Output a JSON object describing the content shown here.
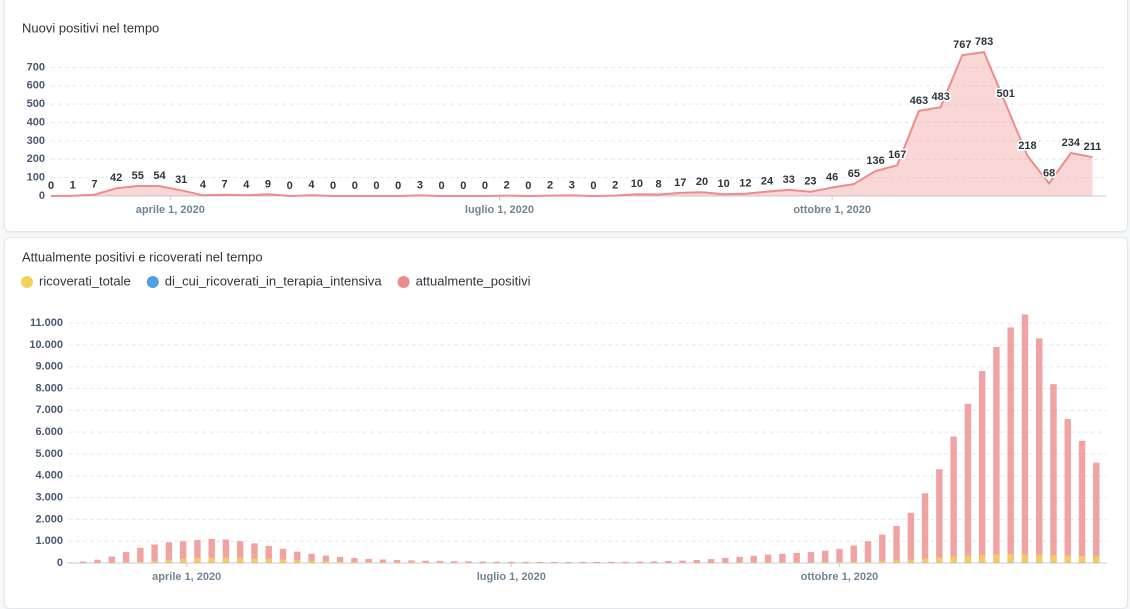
{
  "chart_data": [
    {
      "type": "area",
      "title": "Nuovi positivi nel tempo",
      "color": "#ed8c8c",
      "show_values": true,
      "grid": true,
      "x": [
        "2020-02-28",
        "2020-03-05",
        "2020-03-11",
        "2020-03-17",
        "2020-03-23",
        "2020-03-29",
        "2020-04-04",
        "2020-04-10",
        "2020-04-16",
        "2020-04-22",
        "2020-04-28",
        "2020-05-04",
        "2020-05-10",
        "2020-05-16",
        "2020-05-22",
        "2020-05-28",
        "2020-06-03",
        "2020-06-09",
        "2020-06-15",
        "2020-06-21",
        "2020-06-27",
        "2020-07-03",
        "2020-07-09",
        "2020-07-15",
        "2020-07-21",
        "2020-07-27",
        "2020-08-02",
        "2020-08-08",
        "2020-08-14",
        "2020-08-20",
        "2020-08-26",
        "2020-09-01",
        "2020-09-07",
        "2020-09-13",
        "2020-09-19",
        "2020-09-25",
        "2020-10-01",
        "2020-10-07",
        "2020-10-13",
        "2020-10-19",
        "2020-10-25",
        "2020-10-31",
        "2020-11-06",
        "2020-11-12",
        "2020-11-18",
        "2020-11-24",
        "2020-11-30",
        "2020-12-06",
        "2020-12-12"
      ],
      "values": [
        0,
        1,
        7,
        42,
        55,
        54,
        31,
        4,
        7,
        4,
        9,
        0,
        4,
        0,
        0,
        0,
        0,
        3,
        0,
        0,
        0,
        2,
        0,
        2,
        3,
        0,
        2,
        10,
        8,
        17,
        20,
        10,
        12,
        24,
        33,
        23,
        46,
        65,
        136,
        167,
        463,
        483,
        767,
        783,
        501,
        218,
        68,
        234,
        211
      ],
      "xlim": [
        "2020-02-28",
        "2020-12-16"
      ],
      "xticks": [
        {
          "value": "2020-04-01",
          "label": "aprile 1, 2020"
        },
        {
          "value": "2020-07-01",
          "label": "luglio 1, 2020"
        },
        {
          "value": "2020-10-01",
          "label": "ottobre 1, 2020"
        }
      ],
      "ylim": [
        0,
        800
      ],
      "yticks": [
        0,
        100,
        200,
        300,
        400,
        500,
        600,
        700
      ]
    },
    {
      "type": "bar",
      "title": "Attualmente positivi e ricoverati nel tempo",
      "grid": true,
      "legend": "top-left",
      "x": [
        "2020-02-28",
        "2020-03-03",
        "2020-03-07",
        "2020-03-11",
        "2020-03-15",
        "2020-03-19",
        "2020-03-23",
        "2020-03-27",
        "2020-03-31",
        "2020-04-04",
        "2020-04-08",
        "2020-04-12",
        "2020-04-16",
        "2020-04-20",
        "2020-04-24",
        "2020-04-28",
        "2020-05-02",
        "2020-05-06",
        "2020-05-10",
        "2020-05-14",
        "2020-05-18",
        "2020-05-22",
        "2020-05-26",
        "2020-05-30",
        "2020-06-03",
        "2020-06-07",
        "2020-06-11",
        "2020-06-15",
        "2020-06-19",
        "2020-06-23",
        "2020-06-27",
        "2020-07-01",
        "2020-07-05",
        "2020-07-09",
        "2020-07-13",
        "2020-07-17",
        "2020-07-21",
        "2020-07-25",
        "2020-07-29",
        "2020-08-02",
        "2020-08-06",
        "2020-08-10",
        "2020-08-14",
        "2020-08-18",
        "2020-08-22",
        "2020-08-26",
        "2020-08-30",
        "2020-09-03",
        "2020-09-07",
        "2020-09-11",
        "2020-09-15",
        "2020-09-19",
        "2020-09-23",
        "2020-09-27",
        "2020-10-01",
        "2020-10-05",
        "2020-10-09",
        "2020-10-13",
        "2020-10-17",
        "2020-10-21",
        "2020-10-25",
        "2020-10-29",
        "2020-11-02",
        "2020-11-06",
        "2020-11-10",
        "2020-11-14",
        "2020-11-18",
        "2020-11-22",
        "2020-11-26",
        "2020-11-30",
        "2020-12-04",
        "2020-12-08",
        "2020-12-12"
      ],
      "series": [
        {
          "name": "ricoverati_totale",
          "color": "#f1d35c",
          "values": [
            0,
            2,
            5,
            15,
            30,
            60,
            100,
            150,
            200,
            230,
            250,
            250,
            240,
            220,
            200,
            170,
            140,
            110,
            90,
            70,
            55,
            45,
            35,
            30,
            25,
            20,
            18,
            15,
            12,
            10,
            8,
            7,
            6,
            5,
            5,
            5,
            5,
            5,
            5,
            5,
            5,
            6,
            7,
            8,
            10,
            12,
            15,
            18,
            20,
            22,
            25,
            28,
            32,
            38,
            45,
            55,
            70,
            90,
            120,
            160,
            200,
            250,
            300,
            340,
            370,
            390,
            400,
            395,
            380,
            360,
            340,
            320,
            300
          ]
        },
        {
          "name": "di_cui_ricoverati_in_terapia_intensiva",
          "color": "#509ee3",
          "values": [
            0,
            0,
            1,
            3,
            6,
            12,
            20,
            30,
            38,
            42,
            42,
            40,
            36,
            32,
            28,
            24,
            20,
            16,
            12,
            10,
            8,
            6,
            5,
            4,
            3,
            3,
            2,
            2,
            2,
            2,
            1,
            1,
            1,
            1,
            1,
            1,
            1,
            1,
            1,
            1,
            1,
            1,
            1,
            1,
            2,
            2,
            2,
            3,
            3,
            3,
            4,
            4,
            5,
            6,
            7,
            8,
            10,
            12,
            15,
            20,
            26,
            33,
            40,
            46,
            50,
            53,
            55,
            55,
            54,
            52,
            50,
            48,
            46
          ]
        },
        {
          "name": "attualmente_positivi",
          "color": "#ed8c8c",
          "values": [
            20,
            60,
            150,
            300,
            500,
            700,
            850,
            950,
            1000,
            1050,
            1100,
            1080,
            1000,
            900,
            780,
            650,
            520,
            420,
            340,
            280,
            230,
            190,
            160,
            140,
            120,
            105,
            95,
            85,
            75,
            65,
            60,
            55,
            50,
            45,
            45,
            45,
            50,
            50,
            55,
            55,
            60,
            70,
            90,
            110,
            140,
            180,
            230,
            280,
            330,
            380,
            420,
            460,
            500,
            560,
            650,
            800,
            1000,
            1300,
            1700,
            2300,
            3200,
            4300,
            5800,
            7300,
            8800,
            9900,
            10800,
            11400,
            10300,
            8200,
            6600,
            5600,
            4600
          ]
        }
      ],
      "xlim": [
        "2020-02-28",
        "2020-12-15"
      ],
      "xticks": [
        {
          "value": "2020-04-01",
          "label": "aprile 1, 2020"
        },
        {
          "value": "2020-07-01",
          "label": "luglio 1, 2020"
        },
        {
          "value": "2020-10-01",
          "label": "ottobre 1, 2020"
        }
      ],
      "ylim": [
        0,
        11600
      ],
      "yticks": [
        0,
        {
          "value": 1000,
          "label": "1.000"
        },
        {
          "value": 2000,
          "label": "2.000"
        },
        {
          "value": 3000,
          "label": "3.000"
        },
        {
          "value": 4000,
          "label": "4.000"
        },
        {
          "value": 5000,
          "label": "5.000"
        },
        {
          "value": 6000,
          "label": "6.000"
        },
        {
          "value": 7000,
          "label": "7.000"
        },
        {
          "value": 8000,
          "label": "8.000"
        },
        {
          "value": 9000,
          "label": "9.000"
        },
        {
          "value": 10000,
          "label": "10.000"
        },
        {
          "value": 11000,
          "label": "11.000"
        }
      ]
    }
  ]
}
